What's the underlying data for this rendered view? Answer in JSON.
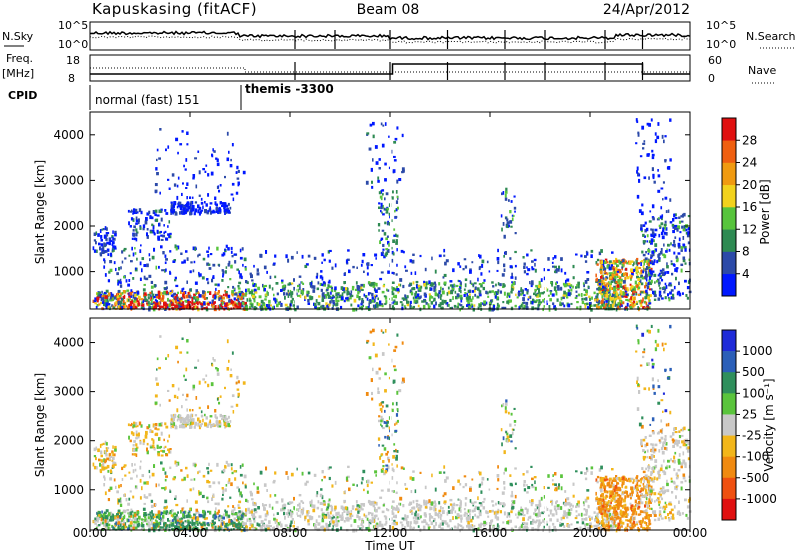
{
  "header": {
    "station": "Kapuskasing (fitACF)",
    "beam": "Beam 08",
    "date": "24/Apr/2012"
  },
  "top_panels": {
    "nsky_label": "N.Sky",
    "nsky_ticks": [
      "10^5",
      "10^0"
    ],
    "nsearch_label": "N.Search",
    "nsearch_ticks": [
      "10^5",
      "10^0"
    ],
    "freq_label": "Freq.",
    "freq_unit": "[MHz]",
    "freq_ticks": [
      "18",
      "8"
    ],
    "nave_label": "Nave",
    "nave_ticks": [
      "60",
      "0"
    ],
    "cpid_label": "CPID",
    "cpid_segments": [
      {
        "label": "normal (fast) 151",
        "start_hour": 0,
        "end_hour": 6.1
      },
      {
        "label": "themis -3300",
        "start_hour": 6.1,
        "end_hour": 24
      }
    ]
  },
  "chart_data": [
    {
      "type": "heatmap",
      "name": "power",
      "ylabel": "Slant Range [km]",
      "ylim": [
        180,
        4500
      ],
      "xlim_hours": [
        0,
        24
      ],
      "yticks": [
        1000,
        2000,
        3000,
        4000
      ],
      "colorbar": {
        "label": "Power [dB]",
        "ticks": [
          "4",
          "8",
          "12",
          "16",
          "20",
          "24",
          "28"
        ],
        "colors": [
          "#0018ff",
          "#2c4aa8",
          "#2e8a52",
          "#57c43c",
          "#f2d21c",
          "#f09a10",
          "#ef5f10",
          "#e01010"
        ]
      }
    },
    {
      "type": "heatmap",
      "name": "velocity",
      "ylabel": "Slant Range [km]",
      "ylim": [
        180,
        4500
      ],
      "xlim_hours": [
        0,
        24
      ],
      "yticks": [
        1000,
        2000,
        3000,
        4000
      ],
      "xticks": [
        "00:00",
        "04:00",
        "08:00",
        "12:00",
        "16:00",
        "20:00",
        "00:00"
      ],
      "xlabel": "Time UT",
      "colorbar": {
        "label": "Velocity [m s⁻¹]",
        "ticks": [
          "1000",
          "500",
          "100",
          "25",
          "-25",
          "-100",
          "-500",
          "-1000"
        ],
        "colors": [
          "#1f2bd8",
          "#2b5fb8",
          "#2f8f5c",
          "#5ac43c",
          "#c8c8c8",
          "#f2b61a",
          "#f08a10",
          "#ef5010",
          "#e01010"
        ]
      }
    }
  ]
}
